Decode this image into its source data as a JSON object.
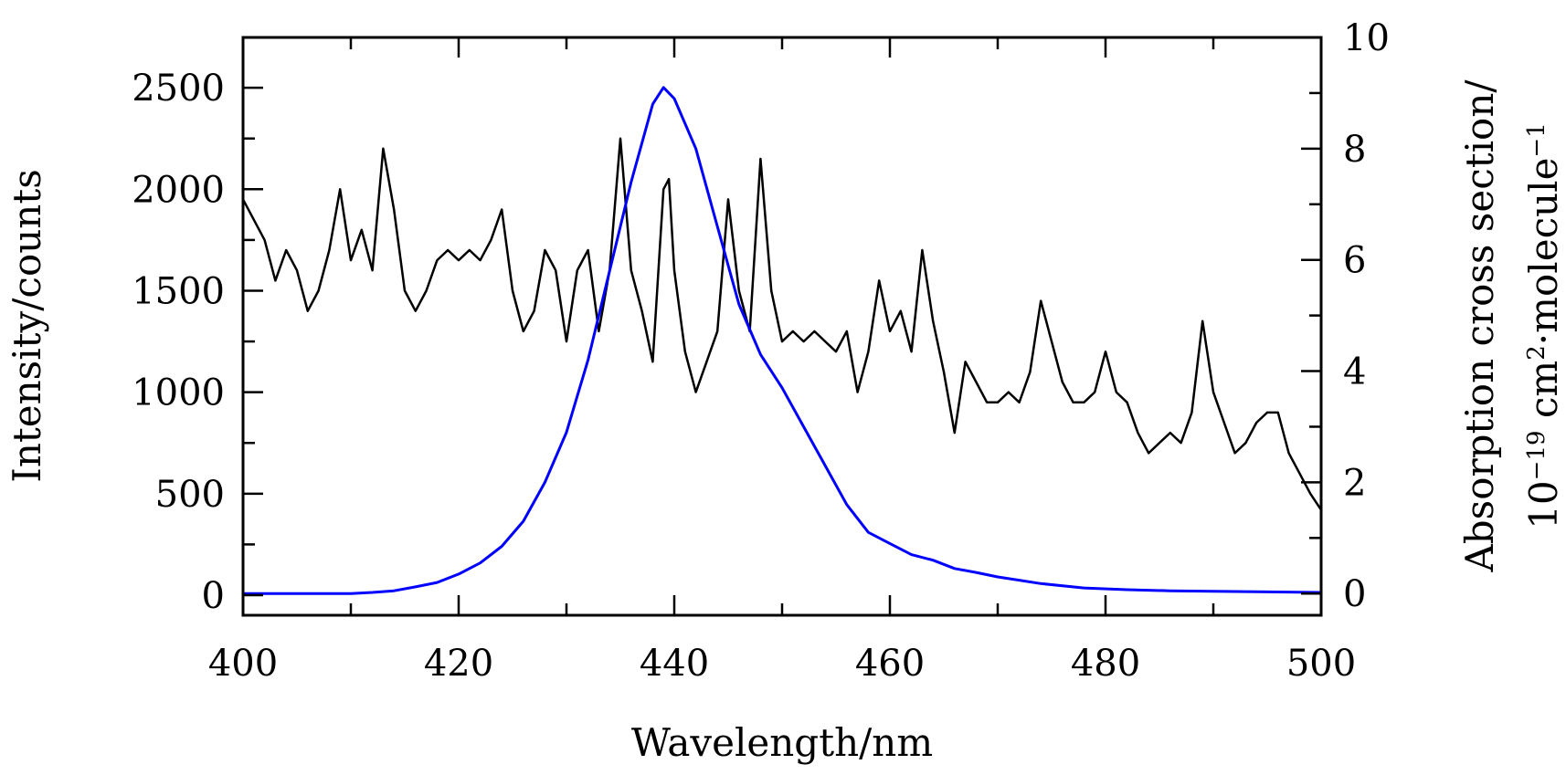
{
  "chart_data": {
    "type": "line",
    "title": "",
    "xlabel": "Wavelength/nm",
    "ylabel_left": "Intensity/counts",
    "ylabel_right_line1": "Absorption cross section/",
    "ylabel_right_line2": {
      "base": "10",
      "exp1": "−19",
      "unit1": " cm",
      "exp2": "2",
      "unit2": "·molecule",
      "exp3": "−1"
    },
    "xlim": [
      400,
      500
    ],
    "ylim_left": [
      -99,
      2748
    ],
    "ylim_right": [
      -0.39,
      10
    ],
    "x_ticks": [
      400,
      420,
      440,
      460,
      480,
      500
    ],
    "y_ticks_left": [
      0,
      500,
      1000,
      1500,
      2000,
      2500
    ],
    "y_ticks_right": [
      0,
      2,
      4,
      6,
      8,
      10
    ],
    "grid": false,
    "series": [
      {
        "axis": "left",
        "color": "#000000",
        "x": [
          400,
          401,
          402,
          403,
          404,
          405,
          406,
          407,
          408,
          409,
          410,
          411,
          412,
          413,
          414,
          415,
          416,
          417,
          418,
          419,
          420,
          421,
          422,
          423,
          424,
          425,
          426,
          427,
          428,
          429,
          430,
          431,
          432,
          433,
          434,
          435,
          436,
          437,
          438,
          439,
          439.5,
          440,
          441,
          442,
          443,
          444,
          445,
          446,
          447,
          448,
          449,
          450,
          451,
          452,
          453,
          454,
          455,
          456,
          457,
          458,
          459,
          460,
          461,
          462,
          463,
          464,
          465,
          466,
          467,
          468,
          469,
          470,
          471,
          472,
          473,
          474,
          475,
          476,
          477,
          478,
          479,
          480,
          481,
          482,
          483,
          484,
          485,
          486,
          487,
          488,
          489,
          490,
          491,
          492,
          493,
          494,
          495,
          496,
          497,
          498,
          499,
          500
        ],
        "y": [
          1950,
          1850,
          1750,
          1550,
          1700,
          1600,
          1400,
          1500,
          1700,
          2000,
          1650,
          1800,
          1600,
          2200,
          1900,
          1500,
          1400,
          1500,
          1650,
          1700,
          1650,
          1700,
          1650,
          1750,
          1900,
          1500,
          1300,
          1400,
          1700,
          1600,
          1250,
          1600,
          1700,
          1300,
          1600,
          2250,
          1600,
          1400,
          1150,
          2000,
          2050,
          1600,
          1200,
          1000,
          1150,
          1300,
          1950,
          1500,
          1300,
          2150,
          1500,
          1250,
          1300,
          1250,
          1300,
          1250,
          1200,
          1300,
          1000,
          1200,
          1550,
          1300,
          1400,
          1200,
          1700,
          1350,
          1100,
          800,
          1150,
          1050,
          950,
          950,
          1000,
          950,
          1100,
          1450,
          1250,
          1050,
          950,
          950,
          1000,
          1200,
          1000,
          950,
          800,
          700,
          750,
          800,
          750,
          900,
          1350,
          1000,
          850,
          700,
          750,
          850,
          900,
          900,
          700,
          600,
          500,
          420
        ]
      },
      {
        "axis": "right",
        "color": "#0000ff",
        "x": [
          400,
          405,
          410,
          412,
          414,
          416,
          418,
          420,
          422,
          424,
          426,
          428,
          430,
          432,
          434,
          436,
          438,
          439,
          440,
          442,
          444,
          446,
          448,
          450,
          452,
          454,
          456,
          458,
          460,
          462,
          464,
          466,
          468,
          470,
          474,
          478,
          482,
          486,
          490,
          495,
          500
        ],
        "y": [
          0,
          0,
          0,
          0.02,
          0.05,
          0.12,
          0.2,
          0.35,
          0.55,
          0.85,
          1.3,
          2.0,
          2.9,
          4.2,
          5.8,
          7.4,
          8.8,
          9.1,
          8.9,
          8.0,
          6.6,
          5.2,
          4.3,
          3.7,
          3.0,
          2.3,
          1.6,
          1.1,
          0.9,
          0.7,
          0.6,
          0.45,
          0.38,
          0.3,
          0.18,
          0.1,
          0.07,
          0.05,
          0.04,
          0.03,
          0.02
        ]
      }
    ]
  }
}
